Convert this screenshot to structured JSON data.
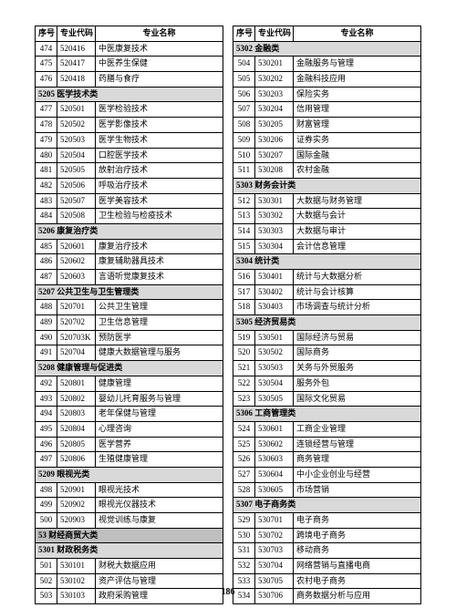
{
  "headers": {
    "seq": "序号",
    "code": "专业代码",
    "name": "专业名称"
  },
  "pageNumber": "186",
  "left": [
    {
      "t": "row",
      "seq": "474",
      "code": "520416",
      "name": "中医康复技术"
    },
    {
      "t": "row",
      "seq": "475",
      "code": "520417",
      "name": "中医养生保健"
    },
    {
      "t": "row",
      "seq": "476",
      "code": "520418",
      "name": "药膳与食疗"
    },
    {
      "t": "cat",
      "label": "5205 医学技术类"
    },
    {
      "t": "row",
      "seq": "477",
      "code": "520501",
      "name": "医学检验技术"
    },
    {
      "t": "row",
      "seq": "478",
      "code": "520502",
      "name": "医学影像技术"
    },
    {
      "t": "row",
      "seq": "479",
      "code": "520503",
      "name": "医学生物技术"
    },
    {
      "t": "row",
      "seq": "480",
      "code": "520504",
      "name": "口腔医学技术"
    },
    {
      "t": "row",
      "seq": "481",
      "code": "520505",
      "name": "放射治疗技术"
    },
    {
      "t": "row",
      "seq": "482",
      "code": "520506",
      "name": "呼吸治疗技术"
    },
    {
      "t": "row",
      "seq": "483",
      "code": "520507",
      "name": "医学美容技术"
    },
    {
      "t": "row",
      "seq": "484",
      "code": "520508",
      "name": "卫生检验与检疫技术"
    },
    {
      "t": "cat",
      "label": "5206 康复治疗类"
    },
    {
      "t": "row",
      "seq": "485",
      "code": "520601",
      "name": "康复治疗技术"
    },
    {
      "t": "row",
      "seq": "486",
      "code": "520602",
      "name": "康复辅助器具技术"
    },
    {
      "t": "row",
      "seq": "487",
      "code": "520603",
      "name": "言语听觉康复技术"
    },
    {
      "t": "cat",
      "label": "5207 公共卫生与卫生管理类"
    },
    {
      "t": "row",
      "seq": "488",
      "code": "520701",
      "name": "公共卫生管理"
    },
    {
      "t": "row",
      "seq": "489",
      "code": "520702",
      "name": "卫生信息管理"
    },
    {
      "t": "row",
      "seq": "490",
      "code": "520703K",
      "name": "预防医学"
    },
    {
      "t": "row",
      "seq": "491",
      "code": "520704",
      "name": "健康大数据管理与服务"
    },
    {
      "t": "cat",
      "label": "5208 健康管理与促进类"
    },
    {
      "t": "row",
      "seq": "492",
      "code": "520801",
      "name": "健康管理"
    },
    {
      "t": "row",
      "seq": "493",
      "code": "520802",
      "name": "婴幼儿托育服务与管理"
    },
    {
      "t": "row",
      "seq": "494",
      "code": "520803",
      "name": "老年保健与管理"
    },
    {
      "t": "row",
      "seq": "495",
      "code": "520804",
      "name": "心理咨询"
    },
    {
      "t": "row",
      "seq": "496",
      "code": "520805",
      "name": "医学营养"
    },
    {
      "t": "row",
      "seq": "497",
      "code": "520806",
      "name": "生殖健康管理"
    },
    {
      "t": "cat",
      "label": "5209 眼视光类"
    },
    {
      "t": "row",
      "seq": "498",
      "code": "520901",
      "name": "眼视光技术"
    },
    {
      "t": "row",
      "seq": "499",
      "code": "520902",
      "name": "眼视光仪器技术"
    },
    {
      "t": "row",
      "seq": "500",
      "code": "520903",
      "name": "视觉训练与康复"
    },
    {
      "t": "cat-main",
      "label": "53 财经商贸大类"
    },
    {
      "t": "cat",
      "label": "5301 财政税务类"
    },
    {
      "t": "row",
      "seq": "501",
      "code": "530101",
      "name": "财税大数据应用"
    },
    {
      "t": "row",
      "seq": "502",
      "code": "530102",
      "name": "资产评估与管理"
    },
    {
      "t": "row",
      "seq": "503",
      "code": "530103",
      "name": "政府采购管理"
    }
  ],
  "right": [
    {
      "t": "cat",
      "label": "5302 金融类"
    },
    {
      "t": "row",
      "seq": "504",
      "code": "530201",
      "name": "金融服务与管理"
    },
    {
      "t": "row",
      "seq": "505",
      "code": "530202",
      "name": "金融科技应用"
    },
    {
      "t": "row",
      "seq": "506",
      "code": "530203",
      "name": "保险实务"
    },
    {
      "t": "row",
      "seq": "507",
      "code": "530204",
      "name": "信用管理"
    },
    {
      "t": "row",
      "seq": "508",
      "code": "530205",
      "name": "财富管理"
    },
    {
      "t": "row",
      "seq": "509",
      "code": "530206",
      "name": "证券实务"
    },
    {
      "t": "row",
      "seq": "510",
      "code": "530207",
      "name": "国际金融"
    },
    {
      "t": "row",
      "seq": "511",
      "code": "530208",
      "name": "农村金融"
    },
    {
      "t": "cat",
      "label": "5303 财务会计类"
    },
    {
      "t": "row",
      "seq": "512",
      "code": "530301",
      "name": "大数据与财务管理"
    },
    {
      "t": "row",
      "seq": "513",
      "code": "530302",
      "name": "大数据与会计"
    },
    {
      "t": "row",
      "seq": "514",
      "code": "530303",
      "name": "大数据与审计"
    },
    {
      "t": "row",
      "seq": "515",
      "code": "530304",
      "name": "会计信息管理"
    },
    {
      "t": "cat",
      "label": "5304 统计类"
    },
    {
      "t": "row",
      "seq": "516",
      "code": "530401",
      "name": "统计与大数据分析"
    },
    {
      "t": "row",
      "seq": "517",
      "code": "530402",
      "name": "统计与会计核算"
    },
    {
      "t": "row",
      "seq": "518",
      "code": "530403",
      "name": "市场调查与统计分析"
    },
    {
      "t": "cat",
      "label": "5305 经济贸易类"
    },
    {
      "t": "row",
      "seq": "519",
      "code": "530501",
      "name": "国际经济与贸易"
    },
    {
      "t": "row",
      "seq": "520",
      "code": "530502",
      "name": "国际商务"
    },
    {
      "t": "row",
      "seq": "521",
      "code": "530503",
      "name": "关务与外贸服务"
    },
    {
      "t": "row",
      "seq": "522",
      "code": "530504",
      "name": "服务外包"
    },
    {
      "t": "row",
      "seq": "523",
      "code": "530505",
      "name": "国际文化贸易"
    },
    {
      "t": "cat",
      "label": "5306 工商管理类"
    },
    {
      "t": "row",
      "seq": "524",
      "code": "530601",
      "name": "工商企业管理"
    },
    {
      "t": "row",
      "seq": "525",
      "code": "530602",
      "name": "连锁经营与管理"
    },
    {
      "t": "row",
      "seq": "526",
      "code": "530603",
      "name": "商务管理"
    },
    {
      "t": "row",
      "seq": "527",
      "code": "530604",
      "name": "中小企业创业与经营"
    },
    {
      "t": "row",
      "seq": "528",
      "code": "530605",
      "name": "市场营销"
    },
    {
      "t": "cat",
      "label": "5307 电子商务类"
    },
    {
      "t": "row",
      "seq": "529",
      "code": "530701",
      "name": "电子商务"
    },
    {
      "t": "row",
      "seq": "530",
      "code": "530702",
      "name": "跨境电子商务"
    },
    {
      "t": "row",
      "seq": "531",
      "code": "530703",
      "name": "移动商务"
    },
    {
      "t": "row",
      "seq": "532",
      "code": "530704",
      "name": "网络营销与直播电商"
    },
    {
      "t": "row",
      "seq": "533",
      "code": "530705",
      "name": "农村电子商务"
    },
    {
      "t": "row",
      "seq": "534",
      "code": "530706",
      "name": "商务数据分析与应用"
    }
  ]
}
